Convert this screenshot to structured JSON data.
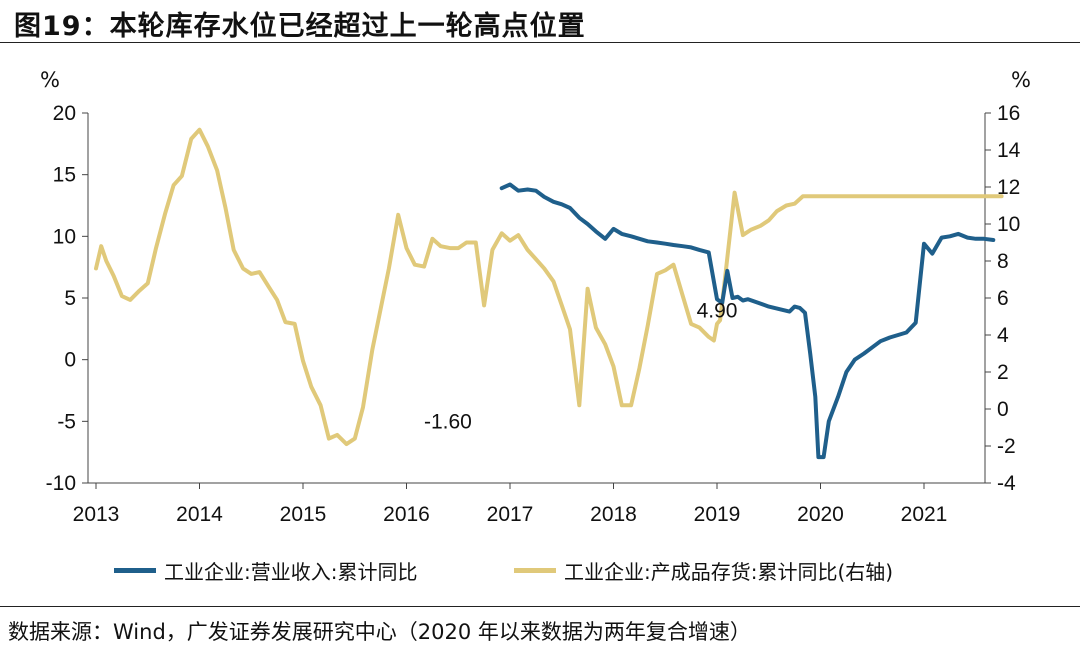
{
  "title": "图19：本轮库存水位已经超过上一轮高点位置",
  "source": "数据来源：Wind，广发证券发展研究中心（2020 年以来数据为两年复合增速）",
  "colors": {
    "revenue": "#1F5F8B",
    "inventory": "#E0C97A",
    "axis": "#444444"
  },
  "chart_data": {
    "type": "line",
    "left_unit": "%",
    "right_unit": "%",
    "x_ticks": [
      "2013",
      "2014",
      "2015",
      "2016",
      "2017",
      "2018",
      "2019",
      "2020",
      "2021"
    ],
    "x_range": [
      2013,
      2021.85
    ],
    "y_left_ticks": [
      "20",
      "15",
      "10",
      "5",
      "0",
      "-5",
      "-10"
    ],
    "y_left_range": [
      -10,
      20
    ],
    "y_right_ticks": [
      "16",
      "14",
      "12",
      "10",
      "8",
      "6",
      "4",
      "2",
      "0",
      "-2",
      "-4"
    ],
    "y_right_range": [
      -4,
      16
    ],
    "series": [
      {
        "name": "工业企业:营业收入:累计同比",
        "axis": "left",
        "color": "#1F5F8B",
        "x": [
          2016.92,
          2017.0,
          2017.08,
          2017.17,
          2017.25,
          2017.33,
          2017.42,
          2017.5,
          2017.58,
          2017.67,
          2017.75,
          2017.83,
          2017.92,
          2018.0,
          2018.08,
          2018.17,
          2018.25,
          2018.33,
          2018.42,
          2018.5,
          2018.58,
          2018.67,
          2018.75,
          2018.83,
          2018.92,
          2019.0,
          2019.05,
          2019.1,
          2019.15,
          2019.2,
          2019.25,
          2019.3,
          2019.4,
          2019.5,
          2019.6,
          2019.7,
          2019.75,
          2019.8,
          2019.85,
          2019.9,
          2019.95,
          2019.98,
          2020.03,
          2020.08,
          2020.17,
          2020.25,
          2020.33,
          2020.42,
          2020.5,
          2020.58,
          2020.67,
          2020.75,
          2020.83,
          2020.92,
          2021.0,
          2021.08,
          2021.17,
          2021.25,
          2021.33,
          2021.42,
          2021.5,
          2021.58,
          2021.67
        ],
        "y": [
          13.9,
          14.2,
          13.7,
          13.8,
          13.7,
          13.2,
          12.8,
          12.6,
          12.3,
          11.5,
          11.0,
          10.4,
          9.8,
          10.6,
          10.2,
          10.0,
          9.8,
          9.6,
          9.5,
          9.4,
          9.3,
          9.2,
          9.1,
          8.9,
          8.7,
          4.9,
          4.6,
          7.2,
          5.0,
          5.1,
          4.8,
          4.9,
          4.6,
          4.3,
          4.1,
          3.9,
          4.3,
          4.2,
          3.8,
          0.5,
          -3.0,
          -7.9,
          -7.9,
          -5.0,
          -3.0,
          -1.0,
          0.0,
          0.5,
          1.0,
          1.5,
          1.8,
          2.0,
          2.2,
          3.0,
          9.4,
          8.6,
          9.9,
          10.0,
          10.2,
          9.9,
          9.8,
          9.8,
          9.7
        ]
      },
      {
        "name": "工业企业:产成品存货:累计同比(右轴)",
        "axis": "right",
        "color": "#E0C97A",
        "x": [
          2013.0,
          2013.05,
          2013.1,
          2013.17,
          2013.25,
          2013.33,
          2013.42,
          2013.5,
          2013.58,
          2013.67,
          2013.75,
          2013.83,
          2013.92,
          2014.0,
          2014.08,
          2014.17,
          2014.25,
          2014.33,
          2014.42,
          2014.5,
          2014.58,
          2014.67,
          2014.75,
          2014.83,
          2014.92,
          2015.0,
          2015.08,
          2015.17,
          2015.25,
          2015.33,
          2015.42,
          2015.5,
          2015.58,
          2015.67,
          2015.75,
          2015.83,
          2015.92,
          2016.0,
          2016.08,
          2016.17,
          2016.25,
          2016.33,
          2016.42,
          2016.5,
          2016.58,
          2016.67,
          2016.75,
          2016.83,
          2016.92,
          2017.0,
          2017.08,
          2017.17,
          2017.25,
          2017.33,
          2017.42,
          2017.5,
          2017.58,
          2017.67,
          2017.75,
          2017.83,
          2017.92,
          2018.0,
          2018.08,
          2018.17,
          2018.25,
          2018.33,
          2018.42,
          2018.5,
          2018.58,
          2018.67,
          2018.75,
          2018.83,
          2018.92,
          2018.97,
          2019.0,
          2019.03,
          2019.08,
          2019.17,
          2019.25,
          2019.33,
          2019.42,
          2019.5,
          2019.58,
          2019.67,
          2019.75,
          2019.83,
          2019.92,
          2020.0,
          2020.08,
          2020.17,
          2020.25,
          2020.33,
          2020.42,
          2020.5,
          2020.58,
          2020.67,
          2020.75,
          2020.83,
          2020.92,
          2021.0,
          2021.05,
          2021.1,
          2021.17,
          2021.25,
          2021.33,
          2021.42,
          2021.5,
          2021.58,
          2021.67,
          2021.75
        ],
        "y": [
          7.6,
          8.8,
          8.0,
          7.2,
          6.1,
          5.9,
          6.4,
          6.8,
          8.7,
          10.6,
          12.1,
          12.6,
          14.6,
          15.1,
          14.2,
          12.9,
          10.9,
          8.6,
          7.6,
          7.3,
          7.4,
          6.6,
          5.9,
          4.7,
          4.6,
          2.6,
          1.2,
          0.2,
          -1.6,
          -1.4,
          -1.9,
          -1.6,
          0.1,
          3.2,
          5.4,
          7.6,
          10.5,
          8.7,
          7.8,
          7.7,
          9.2,
          8.8,
          8.7,
          8.7,
          9.0,
          9.0,
          5.6,
          8.6,
          9.5,
          9.1,
          9.4,
          8.6,
          8.1,
          7.6,
          6.9,
          5.6,
          4.3,
          0.2,
          6.5,
          4.4,
          3.5,
          2.3,
          0.2,
          0.2,
          2.2,
          4.5,
          7.3,
          7.5,
          7.8,
          6.1,
          4.6,
          4.4,
          3.9,
          3.7,
          4.6,
          4.8,
          7.2,
          11.7,
          9.4,
          9.7,
          9.9,
          10.2,
          10.7,
          11.0,
          11.1,
          11.5,
          11.5,
          11.5,
          11.5,
          11.5,
          11.5,
          11.5,
          11.5,
          11.5,
          11.5,
          11.5,
          11.5,
          11.5,
          11.5,
          11.5,
          11.5,
          11.5,
          11.5,
          11.5,
          11.5,
          11.5,
          11.5,
          11.5,
          11.5,
          11.5
        ]
      }
    ],
    "annotations": [
      {
        "text": "-1.60",
        "x": 2016.4,
        "axis": "left",
        "y": -5.0
      },
      {
        "text": "4.90",
        "x": 2019.0,
        "axis": "left",
        "y": 4.0
      }
    ]
  }
}
